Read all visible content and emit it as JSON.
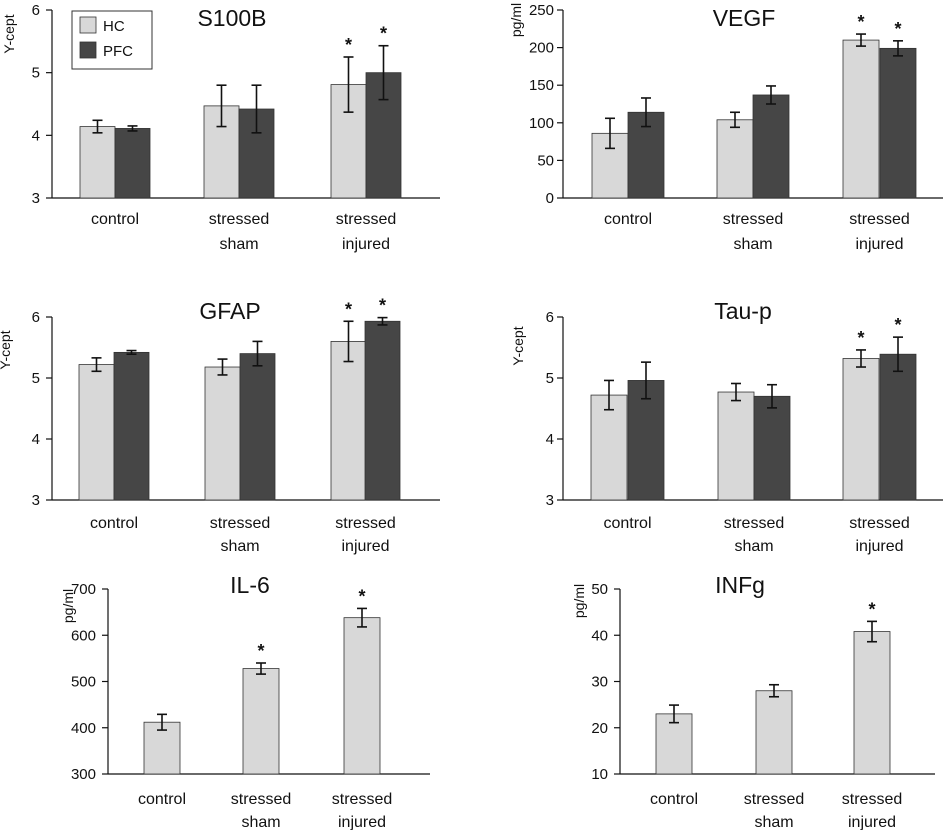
{
  "legend": [
    {
      "label": "HC",
      "color": "#d8d8d8"
    },
    {
      "label": "PFC",
      "color": "#464646"
    }
  ],
  "significance_marker": "*",
  "chart_data": [
    {
      "type": "bar",
      "title": "S100B",
      "ylabel": "Y-cept",
      "ylim": [
        3,
        6
      ],
      "yticks": [
        3,
        4,
        5,
        6
      ],
      "categories": [
        [
          "control"
        ],
        [
          "stressed",
          "sham"
        ],
        [
          "stressed",
          "injured"
        ]
      ],
      "series": [
        {
          "name": "HC",
          "values": [
            4.14,
            4.47,
            4.81
          ],
          "errors": [
            0.1,
            0.33,
            0.44
          ],
          "significant": [
            false,
            false,
            true
          ]
        },
        {
          "name": "PFC",
          "values": [
            4.11,
            4.42,
            5.0
          ],
          "errors": [
            0.04,
            0.38,
            0.43
          ],
          "significant": [
            false,
            false,
            true
          ]
        }
      ]
    },
    {
      "type": "bar",
      "title": "VEGF",
      "ylabel": "pg/ml",
      "ylim": [
        0,
        250
      ],
      "yticks": [
        0,
        50,
        100,
        150,
        200,
        250
      ],
      "categories": [
        [
          "control"
        ],
        [
          "stressed",
          "sham"
        ],
        [
          "stressed",
          "injured"
        ]
      ],
      "series": [
        {
          "name": "HC",
          "values": [
            86,
            104,
            210
          ],
          "errors": [
            20,
            10,
            8
          ],
          "significant": [
            false,
            false,
            true
          ]
        },
        {
          "name": "PFC",
          "values": [
            114,
            137,
            199
          ],
          "errors": [
            19,
            12,
            10
          ],
          "significant": [
            false,
            false,
            true
          ]
        }
      ]
    },
    {
      "type": "bar",
      "title": "GFAP",
      "ylabel": "Y-cept",
      "ylim": [
        3,
        6
      ],
      "yticks": [
        3,
        4,
        5,
        6
      ],
      "categories": [
        [
          "control"
        ],
        [
          "stressed",
          "sham"
        ],
        [
          "stressed",
          "injured"
        ]
      ],
      "series": [
        {
          "name": "HC",
          "values": [
            5.22,
            5.18,
            5.6
          ],
          "errors": [
            0.11,
            0.13,
            0.33
          ],
          "significant": [
            false,
            false,
            true
          ]
        },
        {
          "name": "PFC",
          "values": [
            5.42,
            5.4,
            5.93
          ],
          "errors": [
            0.03,
            0.2,
            0.06
          ],
          "significant": [
            false,
            false,
            true
          ]
        }
      ]
    },
    {
      "type": "bar",
      "title": "Tau-p",
      "ylabel": "Y-cept",
      "ylim": [
        3,
        6
      ],
      "yticks": [
        3,
        4,
        5,
        6
      ],
      "categories": [
        [
          "control"
        ],
        [
          "stressed",
          "sham"
        ],
        [
          "stressed",
          "injured"
        ]
      ],
      "series": [
        {
          "name": "HC",
          "values": [
            4.72,
            4.77,
            5.32
          ],
          "errors": [
            0.24,
            0.14,
            0.14
          ],
          "significant": [
            false,
            false,
            true
          ]
        },
        {
          "name": "PFC",
          "values": [
            4.96,
            4.7,
            5.39
          ],
          "errors": [
            0.3,
            0.19,
            0.28
          ],
          "significant": [
            false,
            false,
            true
          ]
        }
      ]
    },
    {
      "type": "bar",
      "title": "IL-6",
      "ylabel": "pg/ml",
      "ylim": [
        300,
        700
      ],
      "yticks": [
        300,
        400,
        500,
        600,
        700
      ],
      "categories": [
        [
          "control"
        ],
        [
          "stressed",
          "sham"
        ],
        [
          "stressed",
          "injured"
        ]
      ],
      "series": [
        {
          "name": "HC",
          "values": [
            412,
            528,
            638
          ],
          "errors": [
            17,
            12,
            20
          ],
          "significant": [
            false,
            true,
            true
          ]
        }
      ]
    },
    {
      "type": "bar",
      "title": "INFg",
      "ylabel": "pg/ml",
      "ylim": [
        10,
        50
      ],
      "yticks": [
        10,
        20,
        30,
        40,
        50
      ],
      "categories": [
        [
          "control"
        ],
        [
          "stressed",
          "sham"
        ],
        [
          "stressed",
          "injured"
        ]
      ],
      "series": [
        {
          "name": "HC",
          "values": [
            23,
            28,
            40.8
          ],
          "errors": [
            1.9,
            1.3,
            2.2
          ],
          "significant": [
            false,
            false,
            true
          ]
        }
      ]
    }
  ]
}
